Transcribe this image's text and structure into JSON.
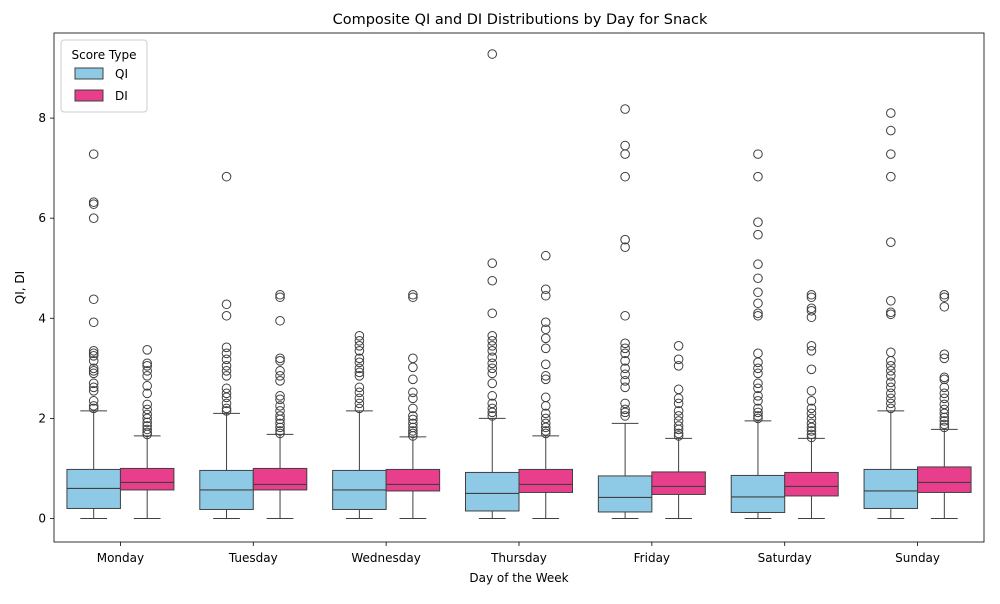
{
  "chart_data": {
    "type": "boxplot",
    "title": "Composite QI and DI Distributions by Day for Snack",
    "xlabel": "Day of the Week",
    "ylabel": "QI, DI",
    "ylim": [
      -0.47,
      9.7
    ],
    "yticks": [
      0,
      2,
      4,
      6,
      8
    ],
    "grid": false,
    "legend": {
      "title": "Score Type",
      "placement": "top-left"
    },
    "categories": [
      "Monday",
      "Tuesday",
      "Wednesday",
      "Thursday",
      "Friday",
      "Saturday",
      "Sunday"
    ],
    "series": [
      {
        "name": "QI",
        "color": "#8ecae6",
        "boxes": [
          {
            "whisker_low": 0,
            "q1": 0.2,
            "median": 0.6,
            "q3": 0.98,
            "whisker_high": 2.15,
            "outliers": [
              2.2,
              2.25,
              2.35,
              2.55,
              2.62,
              2.7,
              2.9,
              2.95,
              3.0,
              3.15,
              3.25,
              3.3,
              3.35,
              3.92,
              4.38,
              6.0,
              6.28,
              6.32,
              7.28
            ]
          },
          {
            "whisker_low": 0,
            "q1": 0.18,
            "median": 0.57,
            "q3": 0.96,
            "whisker_high": 2.1,
            "outliers": [
              2.15,
              2.2,
              2.3,
              2.42,
              2.5,
              2.6,
              2.85,
              2.95,
              3.05,
              3.18,
              3.3,
              3.42,
              4.05,
              4.28,
              6.83
            ]
          },
          {
            "whisker_low": 0,
            "q1": 0.18,
            "median": 0.57,
            "q3": 0.96,
            "whisker_high": 2.15,
            "outliers": [
              2.2,
              2.3,
              2.4,
              2.52,
              2.62,
              2.85,
              2.92,
              3.0,
              3.12,
              3.2,
              3.35,
              3.45,
              3.55,
              3.65
            ]
          },
          {
            "whisker_low": 0,
            "q1": 0.15,
            "median": 0.5,
            "q3": 0.92,
            "whisker_high": 2.0,
            "outliers": [
              2.05,
              2.12,
              2.2,
              2.3,
              2.45,
              2.7,
              2.9,
              3.0,
              3.1,
              3.22,
              3.35,
              3.45,
              3.55,
              3.65,
              4.1,
              4.75,
              5.1,
              9.28
            ]
          },
          {
            "whisker_low": 0,
            "q1": 0.13,
            "median": 0.42,
            "q3": 0.85,
            "whisker_high": 1.9,
            "outliers": [
              2.05,
              2.12,
              2.18,
              2.3,
              2.62,
              2.75,
              2.88,
              3.0,
              3.15,
              3.3,
              3.4,
              3.5,
              4.05,
              5.42,
              5.57,
              6.83,
              7.28,
              7.45,
              8.18
            ]
          },
          {
            "whisker_low": 0,
            "q1": 0.12,
            "median": 0.43,
            "q3": 0.86,
            "whisker_high": 1.95,
            "outliers": [
              2.0,
              2.05,
              2.12,
              2.2,
              2.35,
              2.45,
              2.6,
              2.7,
              2.9,
              3.0,
              3.12,
              3.3,
              4.05,
              4.1,
              4.3,
              4.52,
              4.8,
              5.08,
              5.67,
              5.92,
              6.83,
              7.28
            ]
          },
          {
            "whisker_low": 0,
            "q1": 0.2,
            "median": 0.55,
            "q3": 0.98,
            "whisker_high": 2.15,
            "outliers": [
              2.2,
              2.3,
              2.4,
              2.5,
              2.62,
              2.72,
              2.85,
              2.95,
              3.05,
              3.15,
              3.32,
              4.08,
              4.12,
              4.35,
              5.52,
              6.83,
              7.28,
              7.75,
              8.1
            ]
          }
        ]
      },
      {
        "name": "DI",
        "color": "#e83e8c",
        "boxes": [
          {
            "whisker_low": 0,
            "q1": 0.57,
            "median": 0.72,
            "q3": 1.0,
            "whisker_high": 1.65,
            "outliers": [
              1.68,
              1.72,
              1.78,
              1.85,
              1.92,
              2.0,
              2.08,
              2.18,
              2.28,
              2.5,
              2.65,
              2.85,
              2.95,
              3.05,
              3.1,
              3.37
            ]
          },
          {
            "whisker_low": 0,
            "q1": 0.57,
            "median": 0.68,
            "q3": 1.0,
            "whisker_high": 1.68,
            "outliers": [
              1.7,
              1.75,
              1.82,
              1.9,
              1.98,
              2.05,
              2.15,
              2.25,
              2.38,
              2.45,
              2.75,
              2.85,
              2.95,
              3.15,
              3.2,
              3.95,
              4.42,
              4.47
            ]
          },
          {
            "whisker_low": 0,
            "q1": 0.55,
            "median": 0.68,
            "q3": 0.98,
            "whisker_high": 1.63,
            "outliers": [
              1.65,
              1.7,
              1.75,
              1.82,
              1.9,
              1.98,
              2.05,
              2.2,
              2.4,
              2.52,
              2.78,
              3.02,
              3.2,
              4.42,
              4.47
            ]
          },
          {
            "whisker_low": 0,
            "q1": 0.52,
            "median": 0.68,
            "q3": 0.98,
            "whisker_high": 1.65,
            "outliers": [
              1.7,
              1.75,
              1.82,
              1.9,
              2.0,
              2.1,
              2.25,
              2.42,
              2.78,
              2.85,
              3.08,
              3.4,
              3.6,
              3.78,
              3.92,
              4.45,
              4.58,
              5.25
            ]
          },
          {
            "whisker_low": 0,
            "q1": 0.48,
            "median": 0.64,
            "q3": 0.93,
            "whisker_high": 1.6,
            "outliers": [
              1.65,
              1.7,
              1.78,
              1.85,
              1.95,
              2.05,
              2.15,
              2.3,
              2.4,
              2.58,
              3.05,
              3.18,
              3.45
            ]
          },
          {
            "whisker_low": 0,
            "q1": 0.45,
            "median": 0.64,
            "q3": 0.92,
            "whisker_high": 1.6,
            "outliers": [
              1.62,
              1.68,
              1.75,
              1.82,
              1.9,
              2.0,
              2.1,
              2.2,
              2.35,
              2.55,
              2.98,
              3.35,
              3.45,
              4.02,
              4.15,
              4.2,
              4.42,
              4.47
            ]
          },
          {
            "whisker_low": 0,
            "q1": 0.52,
            "median": 0.72,
            "q3": 1.03,
            "whisker_high": 1.78,
            "outliers": [
              1.82,
              1.88,
              1.95,
              2.02,
              2.1,
              2.18,
              2.28,
              2.4,
              2.5,
              2.62,
              2.78,
              2.82,
              3.2,
              3.28,
              4.23,
              4.42,
              4.47
            ]
          }
        ]
      }
    ]
  }
}
